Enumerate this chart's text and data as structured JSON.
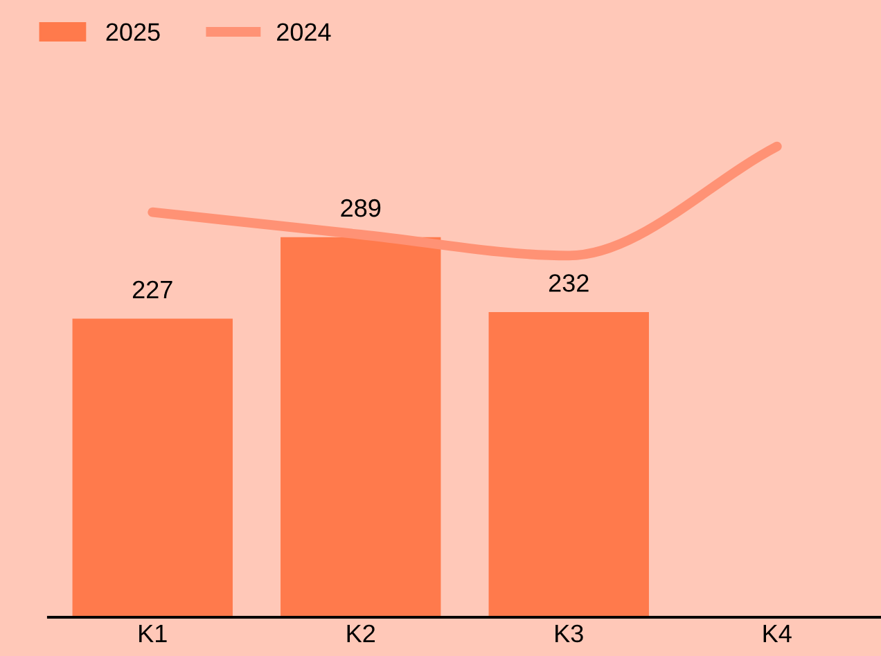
{
  "chart_data": {
    "type": "bar",
    "categories": [
      "K1",
      "K2",
      "K3",
      "K4"
    ],
    "series": [
      {
        "name": "2025",
        "color": "#ff7a4c",
        "values": [
          227,
          289,
          232,
          null
        ],
        "value_labels": [
          "227",
          "289",
          "232",
          null
        ]
      },
      {
        "name": "2024",
        "type": "line",
        "color": "#ff9275",
        "values": [
          308,
          291,
          275,
          358
        ]
      }
    ],
    "legend": "top left",
    "tick_labels": "x"
  }
}
